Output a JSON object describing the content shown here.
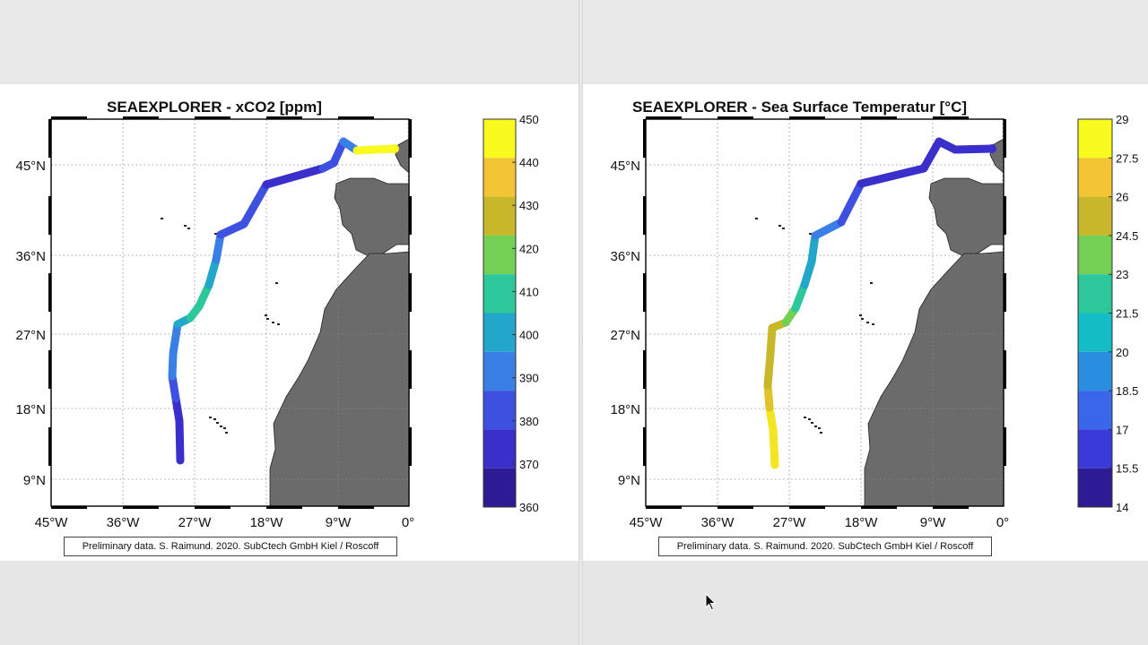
{
  "panels": [
    {
      "title": "SEAEXPLORER - xCO2 [ppm]",
      "colorbar_labels": [
        "450",
        "440",
        "430",
        "420",
        "410",
        "400",
        "390",
        "380",
        "370",
        "360"
      ],
      "colorbar_colors": [
        "#f9fb1e",
        "#f3c534",
        "#c9b72a",
        "#74d054",
        "#2cc79b",
        "#22a6c9",
        "#3a7fe6",
        "#3d50e0",
        "#3a2fcb",
        "#2d1a95"
      ],
      "track_colors": [
        "#3a2fcb",
        "#3d50e0",
        "#3a7fe6",
        "#22a6c9",
        "#2cc79b",
        "#22a6c9",
        "#3a7fe6",
        "#3d50e0",
        "#3a2fcb",
        "#3d50e0",
        "#3a7fe6",
        "#f9fb1e"
      ],
      "credit": "Preliminary data. S. Raimund. 2020. SubCtech GmbH Kiel / Roscoff"
    },
    {
      "title": "SEAEXPLORER - Sea Surface Temperatur [°C]",
      "colorbar_labels": [
        "29",
        "27.5",
        "26",
        "24.5",
        "23",
        "21.5",
        "20",
        "18.5",
        "17",
        "15.5",
        "14"
      ],
      "colorbar_colors": [
        "#f9fb1e",
        "#f3c534",
        "#c9b72a",
        "#74d054",
        "#2cc79b",
        "#14bcc6",
        "#2a8ee0",
        "#3a66ea",
        "#3a3ad8",
        "#2d1a95"
      ],
      "track_colors": [
        "#f3e51f",
        "#e0c22b",
        "#c9b72a",
        "#c9b72a",
        "#74d054",
        "#2cc79b",
        "#22a6c9",
        "#3a7fe6",
        "#3d50e0",
        "#3a2fcb",
        "#3a2fcb",
        "#3a2fcb"
      ],
      "credit": "Preliminary data. S. Raimund. 2020. SubCtech GmbH Kiel / Roscoff"
    }
  ],
  "map": {
    "lat_labels": [
      "45°N",
      "36°N",
      "27°N",
      "18°N",
      "9°N"
    ],
    "lon_labels": [
      "45°W",
      "36°W",
      "27°W",
      "18°W",
      "9°W",
      "0°"
    ],
    "ocean_color": "#ffffff",
    "land_color": "#6b6b6b"
  }
}
